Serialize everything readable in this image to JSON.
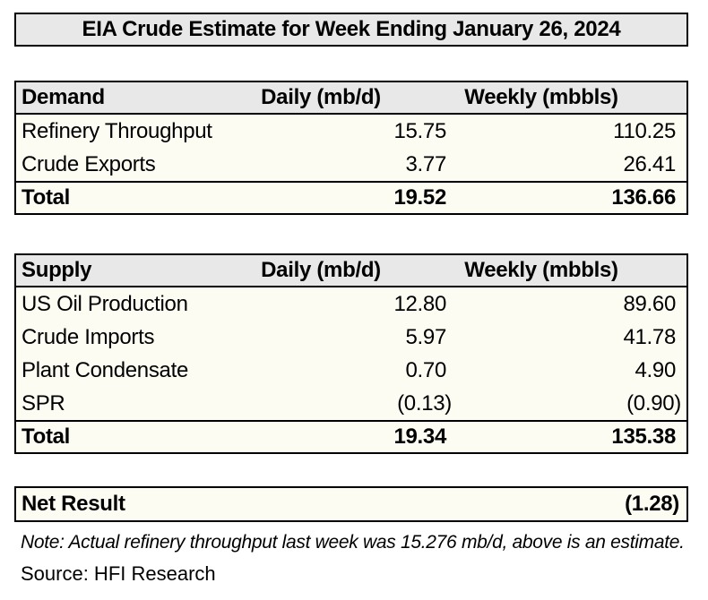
{
  "title": "EIA Crude Estimate for Week Ending January 26, 2024",
  "demand_table": {
    "header": {
      "label": "Demand",
      "daily": "Daily (mb/d)",
      "weekly": "Weekly (mbbls)"
    },
    "rows": [
      {
        "label": "Refinery Throughput",
        "daily": "15.75",
        "weekly": "110.25"
      },
      {
        "label": "Crude Exports",
        "daily": "3.77",
        "weekly": "26.41"
      }
    ],
    "total": {
      "label": "Total",
      "daily": "19.52",
      "weekly": "136.66"
    }
  },
  "supply_table": {
    "header": {
      "label": "Supply",
      "daily": "Daily (mb/d)",
      "weekly": "Weekly (mbbls)"
    },
    "rows": [
      {
        "label": "US Oil Production",
        "daily": "12.80",
        "weekly": "89.60"
      },
      {
        "label": "Crude Imports",
        "daily": "5.97",
        "weekly": "41.78"
      },
      {
        "label": "Plant Condensate",
        "daily": "0.70",
        "weekly": "4.90"
      },
      {
        "label": "SPR",
        "daily": "(0.13)",
        "weekly": "(0.90)"
      }
    ],
    "total": {
      "label": "Total",
      "daily": "19.34",
      "weekly": "135.38"
    }
  },
  "net_result": {
    "label": "Net Result",
    "value": "(1.28)"
  },
  "note": "Note: Actual refinery throughput last week was 15.276 mb/d, above is an estimate.",
  "source": "Source: HFI Research",
  "colors": {
    "header_bg": "#e8e8e8",
    "body_bg": "#fdfcf2",
    "border": "#000000"
  }
}
